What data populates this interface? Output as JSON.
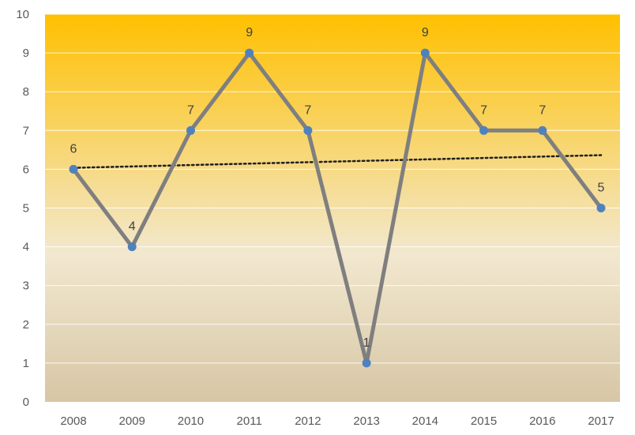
{
  "chart_data": {
    "type": "line",
    "title": "",
    "xlabel": "",
    "ylabel": "",
    "categories": [
      "2008",
      "2009",
      "2010",
      "2011",
      "2012",
      "2013",
      "2014",
      "2015",
      "2016",
      "2017"
    ],
    "series": [
      {
        "values": [
          6,
          4,
          7,
          9,
          7,
          1,
          9,
          7,
          7,
          5
        ]
      }
    ],
    "data_labels": [
      "6",
      "4",
      "7",
      "9",
      "7",
      "1",
      "9",
      "7",
      "7",
      "5"
    ],
    "trendline": {
      "type": "linear",
      "style": "dotted",
      "color": "#1f1f1f"
    },
    "ylim": [
      0,
      10
    ],
    "yticks": [
      "0",
      "1",
      "2",
      "3",
      "4",
      "5",
      "6",
      "7",
      "8",
      "9",
      "10"
    ],
    "grid": true,
    "legend": "none",
    "colors": {
      "line": "#7f7f7f",
      "marker": "#4f81bd",
      "background_top": "#ffc000",
      "background_mid": "#f2e8cf",
      "background_bottom": "#d7c6a6",
      "gridline": "#ffffff"
    }
  }
}
